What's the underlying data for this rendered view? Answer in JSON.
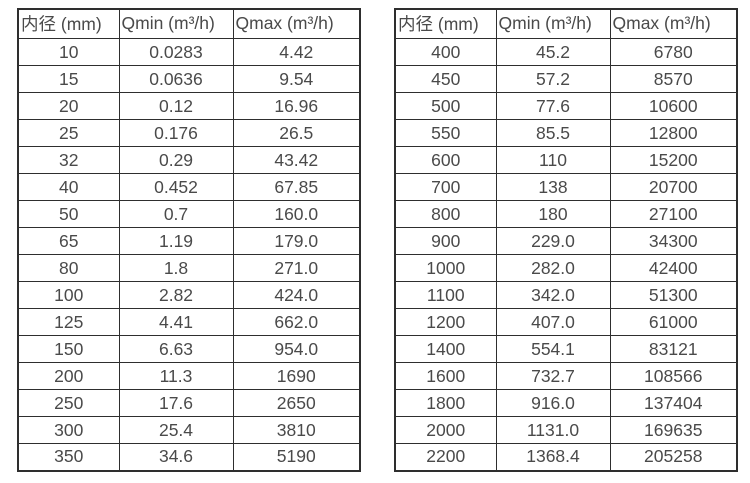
{
  "colors": {
    "border": "#2e2e2e",
    "text": "#4a4a4a",
    "background": "#ffffff"
  },
  "tables": [
    {
      "name": "flow-table-small-diameters",
      "headers": [
        "内径 (mm)",
        "Qmin (m³/h)",
        "Qmax (m³/h)"
      ],
      "rows": [
        [
          "10",
          "0.0283",
          "4.42"
        ],
        [
          "15",
          "0.0636",
          "9.54"
        ],
        [
          "20",
          "0.12",
          "16.96"
        ],
        [
          "25",
          "0.176",
          "26.5"
        ],
        [
          "32",
          "0.29",
          "43.42"
        ],
        [
          "40",
          "0.452",
          "67.85"
        ],
        [
          "50",
          "0.7",
          "160.0"
        ],
        [
          "65",
          "1.19",
          "179.0"
        ],
        [
          "80",
          "1.8",
          "271.0"
        ],
        [
          "100",
          "2.82",
          "424.0"
        ],
        [
          "125",
          "4.41",
          "662.0"
        ],
        [
          "150",
          "6.63",
          "954.0"
        ],
        [
          "200",
          "11.3",
          "1690"
        ],
        [
          "250",
          "17.6",
          "2650"
        ],
        [
          "300",
          "25.4",
          "3810"
        ],
        [
          "350",
          "34.6",
          "5190"
        ]
      ]
    },
    {
      "name": "flow-table-large-diameters",
      "headers": [
        "内径 (mm)",
        "Qmin (m³/h)",
        "Qmax (m³/h)"
      ],
      "rows": [
        [
          "400",
          "45.2",
          "6780"
        ],
        [
          "450",
          "57.2",
          "8570"
        ],
        [
          "500",
          "77.6",
          "10600"
        ],
        [
          "550",
          "85.5",
          "12800"
        ],
        [
          "600",
          "110",
          "15200"
        ],
        [
          "700",
          "138",
          "20700"
        ],
        [
          "800",
          "180",
          "27100"
        ],
        [
          "900",
          "229.0",
          "34300"
        ],
        [
          "1000",
          "282.0",
          "42400"
        ],
        [
          "1100",
          "342.0",
          "51300"
        ],
        [
          "1200",
          "407.0",
          "61000"
        ],
        [
          "1400",
          "554.1",
          "83121"
        ],
        [
          "1600",
          "732.7",
          "108566"
        ],
        [
          "1800",
          "916.0",
          "137404"
        ],
        [
          "2000",
          "1131.0",
          "169635"
        ],
        [
          "2200",
          "1368.4",
          "205258"
        ]
      ]
    }
  ]
}
